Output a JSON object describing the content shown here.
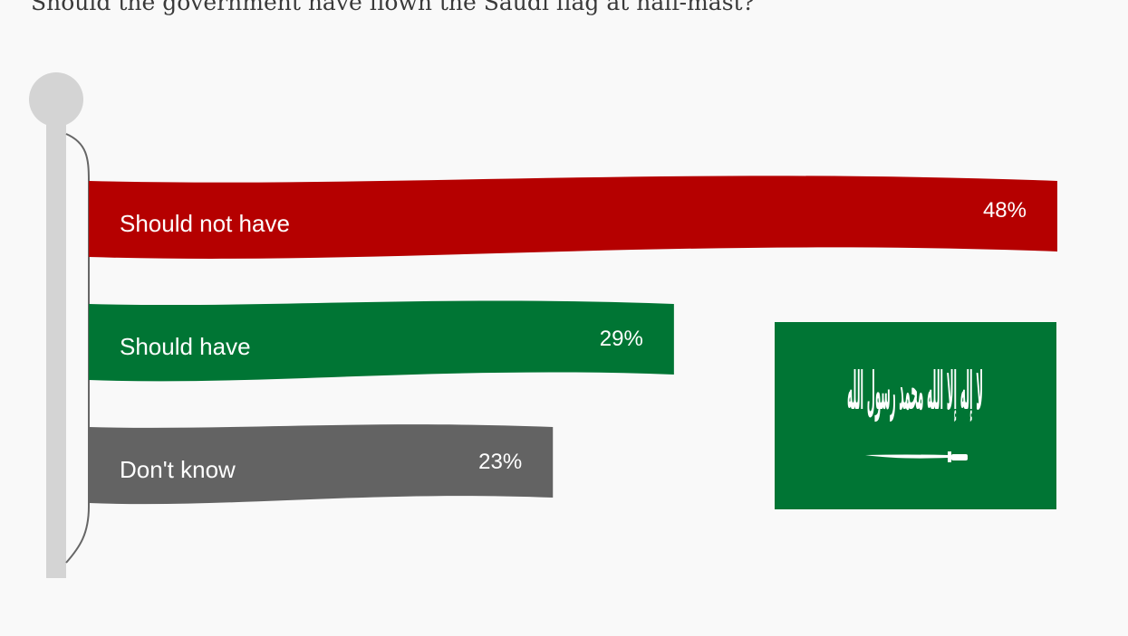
{
  "header": {
    "question": "Should the government have flown the Saudi flag at half-mast?"
  },
  "chart_data": {
    "type": "bar",
    "orientation": "horizontal",
    "title": "Should the government have flown the Saudi flag at half-mast?",
    "categories": [
      "Should not have",
      "Should have",
      "Don't know"
    ],
    "values": [
      48,
      29,
      23
    ],
    "value_labels": [
      "48%",
      "29%",
      "23%"
    ],
    "unit": "%",
    "colors": [
      "#b50000",
      "#007534",
      "#636363"
    ],
    "xlim": [
      0,
      48
    ],
    "grid": false,
    "legend": "none"
  },
  "decoration": {
    "flag_inscription": "لا إله إلا الله محمد رسول الله",
    "flag_green": "#007534",
    "pole_color": "#d4d4d4",
    "pole_icon": "flagpole-icon",
    "flag_icon": "saudi-flag-icon",
    "sword_icon": "sword-icon"
  }
}
